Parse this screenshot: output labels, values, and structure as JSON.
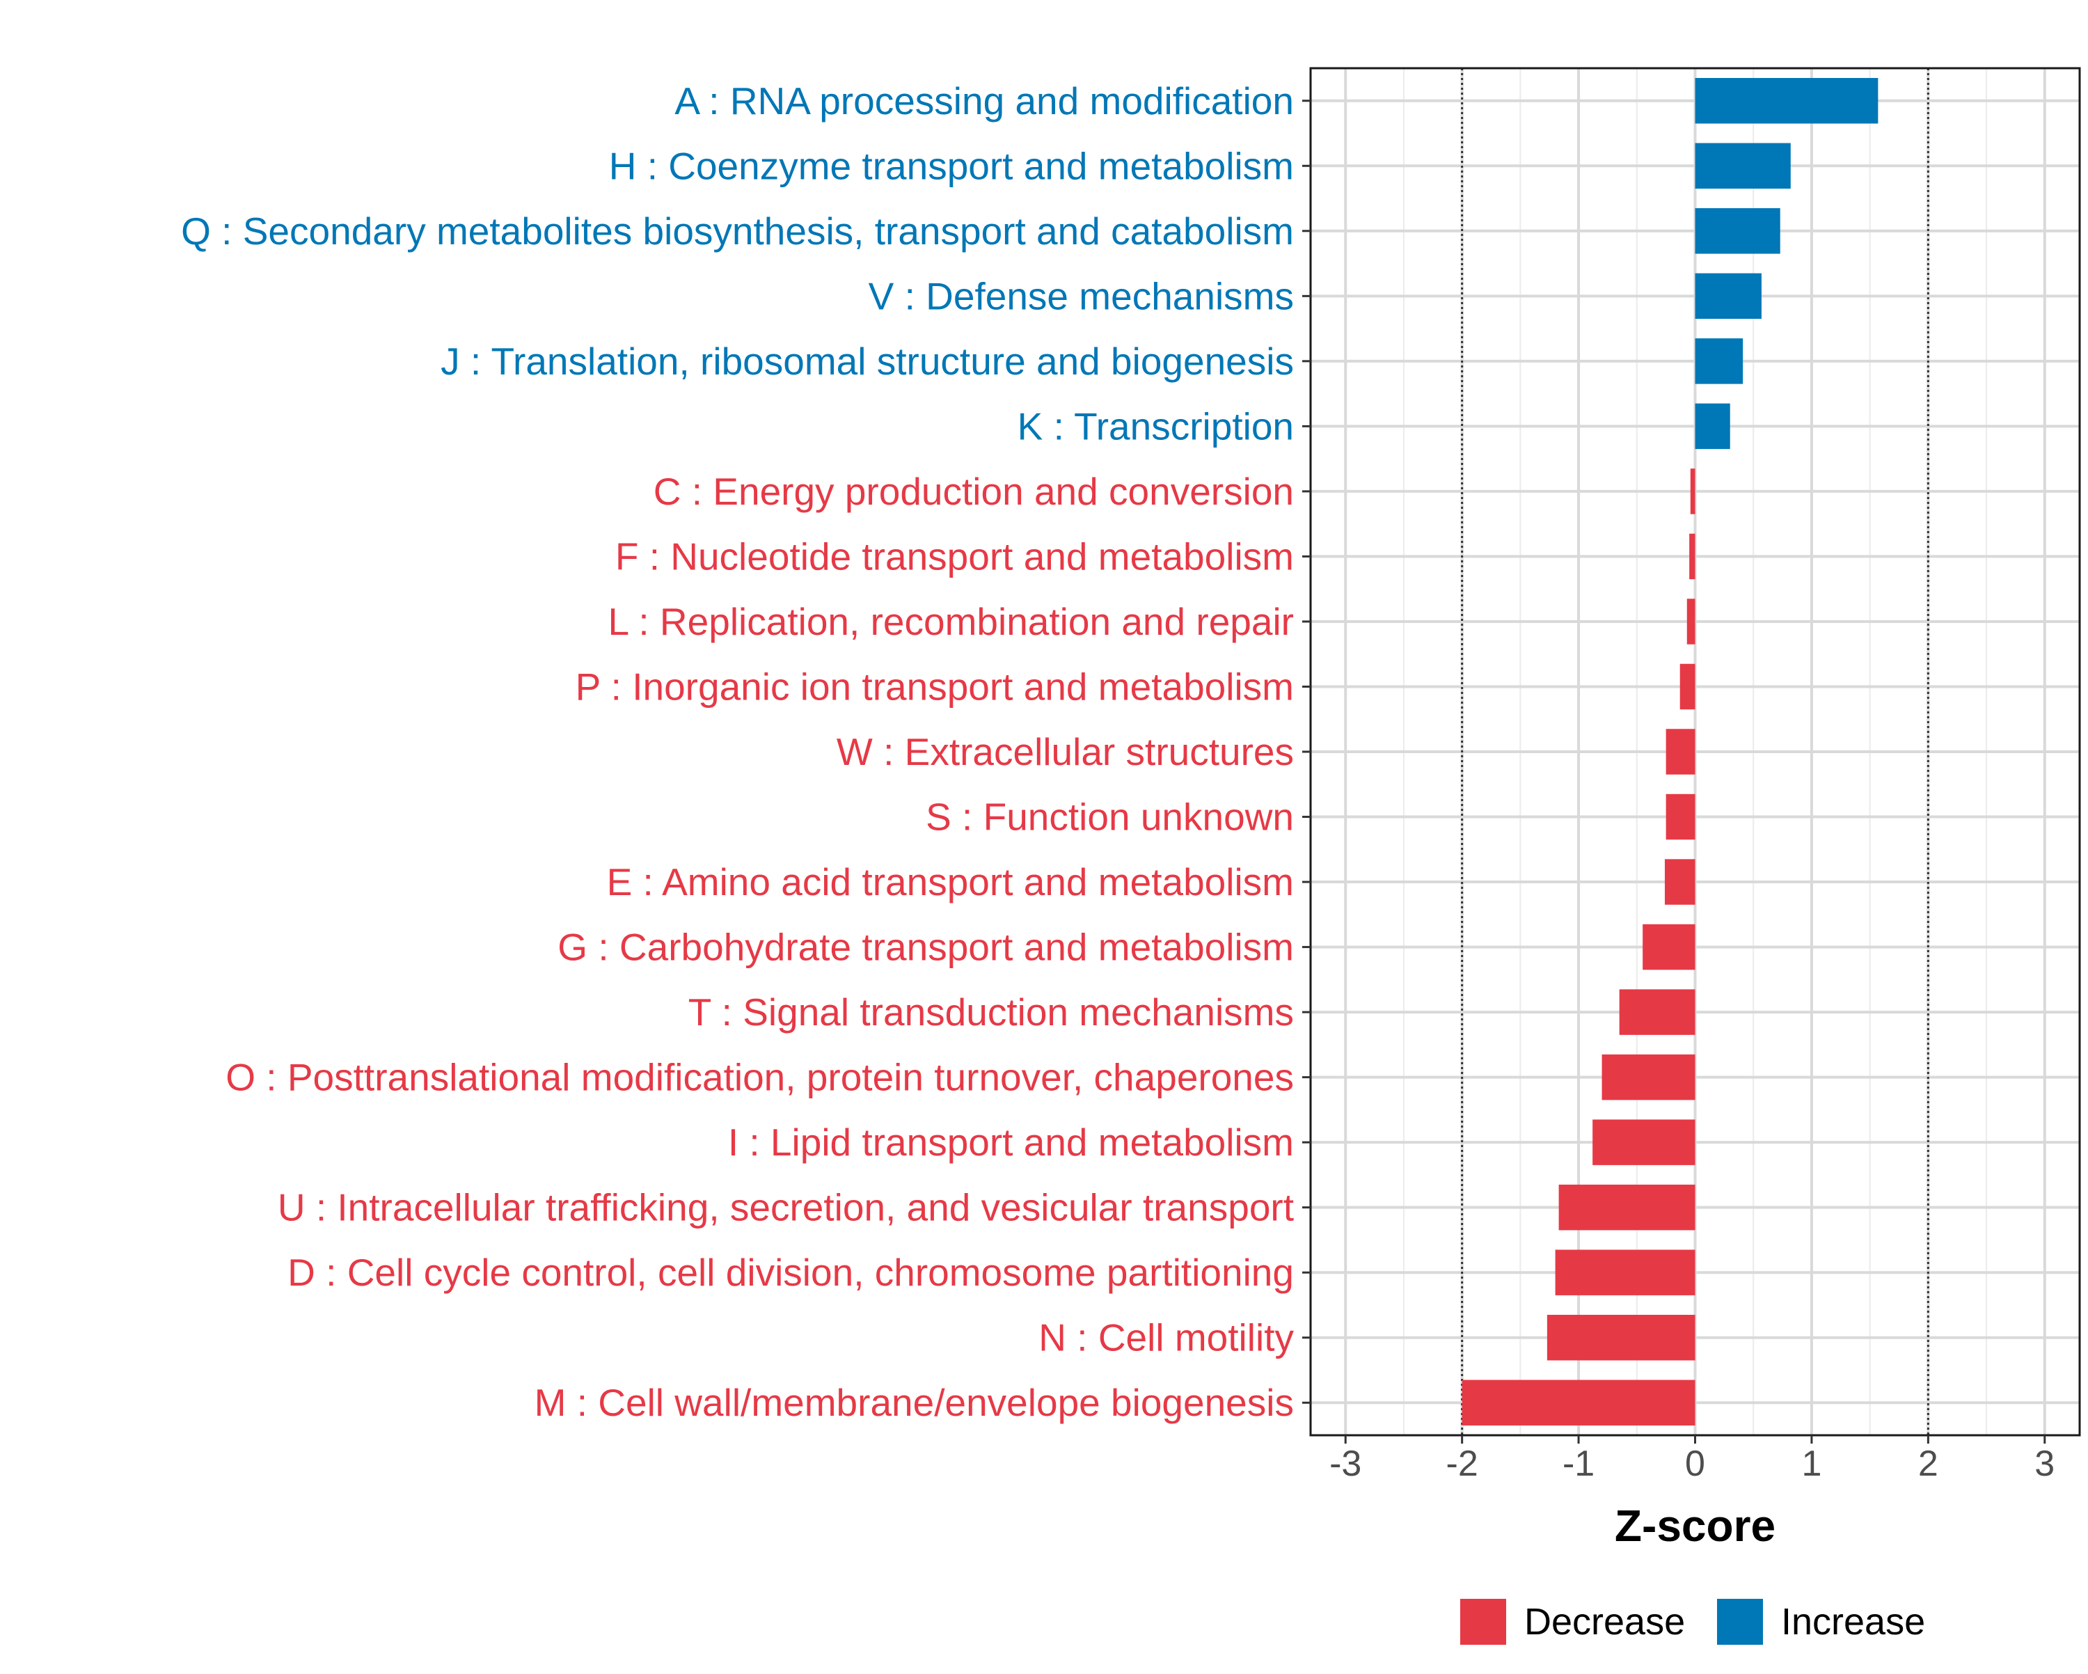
{
  "chart_data": {
    "type": "bar",
    "orientation": "horizontal",
    "title": "",
    "xlabel": "Z-score",
    "ylabel": "",
    "xlim": [
      -3.3,
      3.3
    ],
    "xticks": [
      -3,
      -2,
      -1,
      0,
      1,
      2,
      3
    ],
    "xtick_labels": [
      "-3",
      "-2",
      "-1",
      "0",
      "1",
      "2",
      "3"
    ],
    "reference_lines": [
      -2,
      2
    ],
    "grid": true,
    "legend_position": "bottom",
    "colors": {
      "Decrease": "#e63946",
      "Increase": "#0077b6"
    },
    "categories": [
      {
        "label": "A : RNA processing and modification",
        "value": 1.57,
        "direction": "Increase"
      },
      {
        "label": "H : Coenzyme transport and metabolism",
        "value": 0.82,
        "direction": "Increase"
      },
      {
        "label": "Q : Secondary metabolites biosynthesis, transport and catabolism",
        "value": 0.73,
        "direction": "Increase"
      },
      {
        "label": "V : Defense mechanisms",
        "value": 0.57,
        "direction": "Increase"
      },
      {
        "label": "J : Translation, ribosomal structure and biogenesis",
        "value": 0.41,
        "direction": "Increase"
      },
      {
        "label": "K : Transcription",
        "value": 0.3,
        "direction": "Increase"
      },
      {
        "label": "C : Energy production and conversion",
        "value": -0.04,
        "direction": "Decrease"
      },
      {
        "label": "F : Nucleotide transport and metabolism",
        "value": -0.05,
        "direction": "Decrease"
      },
      {
        "label": "L : Replication, recombination and repair",
        "value": -0.07,
        "direction": "Decrease"
      },
      {
        "label": "P : Inorganic ion transport and metabolism",
        "value": -0.13,
        "direction": "Decrease"
      },
      {
        "label": "W : Extracellular structures",
        "value": -0.25,
        "direction": "Decrease"
      },
      {
        "label": "S : Function unknown",
        "value": -0.25,
        "direction": "Decrease"
      },
      {
        "label": "E : Amino acid transport and metabolism",
        "value": -0.26,
        "direction": "Decrease"
      },
      {
        "label": "G : Carbohydrate transport and metabolism",
        "value": -0.45,
        "direction": "Decrease"
      },
      {
        "label": "T : Signal transduction mechanisms",
        "value": -0.65,
        "direction": "Decrease"
      },
      {
        "label": "O : Posttranslational modification, protein turnover, chaperones",
        "value": -0.8,
        "direction": "Decrease"
      },
      {
        "label": "I : Lipid transport and metabolism",
        "value": -0.88,
        "direction": "Decrease"
      },
      {
        "label": "U : Intracellular trafficking, secretion, and vesicular transport",
        "value": -1.17,
        "direction": "Decrease"
      },
      {
        "label": "D : Cell cycle control, cell division, chromosome partitioning",
        "value": -1.2,
        "direction": "Decrease"
      },
      {
        "label": "N : Cell motility",
        "value": -1.27,
        "direction": "Decrease"
      },
      {
        "label": "M : Cell wall/membrane/envelope biogenesis",
        "value": -2.0,
        "direction": "Decrease"
      }
    ],
    "legend": [
      {
        "name": "Decrease",
        "color": "#e63946"
      },
      {
        "name": "Increase",
        "color": "#0077b6"
      }
    ]
  }
}
